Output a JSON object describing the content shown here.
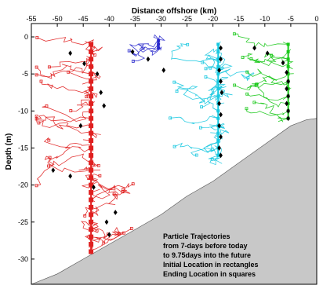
{
  "chart_data": {
    "type": "line",
    "title": "",
    "xlabel": "Distance offshore (km)",
    "ylabel": "Depth (m)",
    "xlim": [
      -55,
      0
    ],
    "ylim": [
      -32,
      1
    ],
    "xticks": [
      -55,
      -50,
      -45,
      -40,
      -35,
      -30,
      -25,
      -20,
      -15,
      -10,
      -5,
      0
    ],
    "xtick_labels": [
      "-55",
      "-50",
      "-45",
      "-40",
      "-35",
      "-30",
      "-25",
      "-20",
      "-15",
      "-10",
      "-5",
      "0"
    ],
    "yticks": [
      0,
      -5,
      -10,
      -15,
      -20,
      -25,
      -30
    ],
    "ytick_labels": [
      "0",
      "-5",
      "-10",
      "-15",
      "-20",
      "-25",
      "-30"
    ],
    "x_axis_position": "top",
    "grid": false,
    "annotation": [
      "Particle Trajectories",
      "from 7-days before today",
      "to 9.75days into the future",
      "Initial Location in rectangles",
      "Ending Location in squares"
    ],
    "bathymetry": {
      "color": "#c8c8c8",
      "x": [
        -55,
        -50,
        -45,
        -40,
        -35,
        -30,
        -25,
        -20,
        -15,
        -10,
        -5,
        -2,
        0
      ],
      "depth": [
        -33.5,
        -32,
        -30,
        -28,
        -26,
        -24,
        -21.5,
        -19.5,
        -17,
        -14.5,
        -12,
        -11.2,
        -11
      ]
    },
    "series": [
      {
        "color": "#e02020",
        "initial_x": -43.5,
        "initial_depths": [
          -1,
          -2,
          -3,
          -4,
          -5,
          -6,
          -7,
          -8,
          -9,
          -10,
          -11,
          -12,
          -13,
          -14,
          -15,
          -16,
          -17,
          -18,
          -19,
          -20,
          -21,
          -22,
          -23,
          -24,
          -25,
          -26,
          -27,
          -28,
          -29
        ],
        "end_points": [
          [
            -47.5,
            -2.2
          ],
          [
            -44.8,
            -3.6
          ],
          [
            -42.3,
            -5
          ],
          [
            -41.6,
            -7.5
          ],
          [
            -41.0,
            -9.3
          ],
          [
            -45.5,
            -12
          ],
          [
            -50.8,
            -18
          ],
          [
            -47.5,
            -18.8
          ],
          [
            -43.0,
            -20.3
          ],
          [
            -38.8,
            -23.7
          ],
          [
            -40.5,
            -25
          ],
          [
            -40.0,
            -26.7
          ]
        ]
      },
      {
        "color": "#2a2acc",
        "initial_x": -30.5,
        "initial_depths": [
          -0.5,
          -1,
          -1.5
        ],
        "end_points": [
          [
            -35.5,
            -2
          ],
          [
            -32.5,
            -3
          ],
          [
            -29.5,
            -4.5
          ]
        ]
      },
      {
        "color": "#18c8e0",
        "initial_x": -19,
        "initial_depths": [
          -1,
          -2,
          -3,
          -4,
          -5,
          -6,
          -7,
          -8,
          -9,
          -10,
          -11,
          -12,
          -13,
          -14,
          -15,
          -16
        ],
        "end_points": [
          [
            -18.5,
            -1.5
          ],
          [
            -18.5,
            -3
          ],
          [
            -18.8,
            -4.5
          ],
          [
            -18.5,
            -6
          ],
          [
            -18.3,
            -7.5
          ],
          [
            -18.8,
            -9
          ],
          [
            -18.5,
            -10.5
          ],
          [
            -18.8,
            -12
          ],
          [
            -18.5,
            -13.5
          ],
          [
            -18.8,
            -15
          ],
          [
            -18.5,
            -16
          ]
        ]
      },
      {
        "color": "#18c818",
        "initial_x": -5.5,
        "initial_depths": [
          -1,
          -2,
          -3,
          -4,
          -5,
          -6,
          -7,
          -8,
          -9,
          -10,
          -11
        ],
        "end_points": [
          [
            -12,
            -1.5
          ],
          [
            -9.5,
            -2.2
          ],
          [
            -6.5,
            -3.5
          ],
          [
            -5.8,
            -4.8
          ],
          [
            -5.5,
            -6
          ],
          [
            -5.8,
            -7
          ],
          [
            -5.5,
            -8
          ],
          [
            -5.8,
            -9
          ],
          [
            -5.5,
            -10
          ],
          [
            -5.5,
            -11
          ]
        ]
      }
    ]
  }
}
